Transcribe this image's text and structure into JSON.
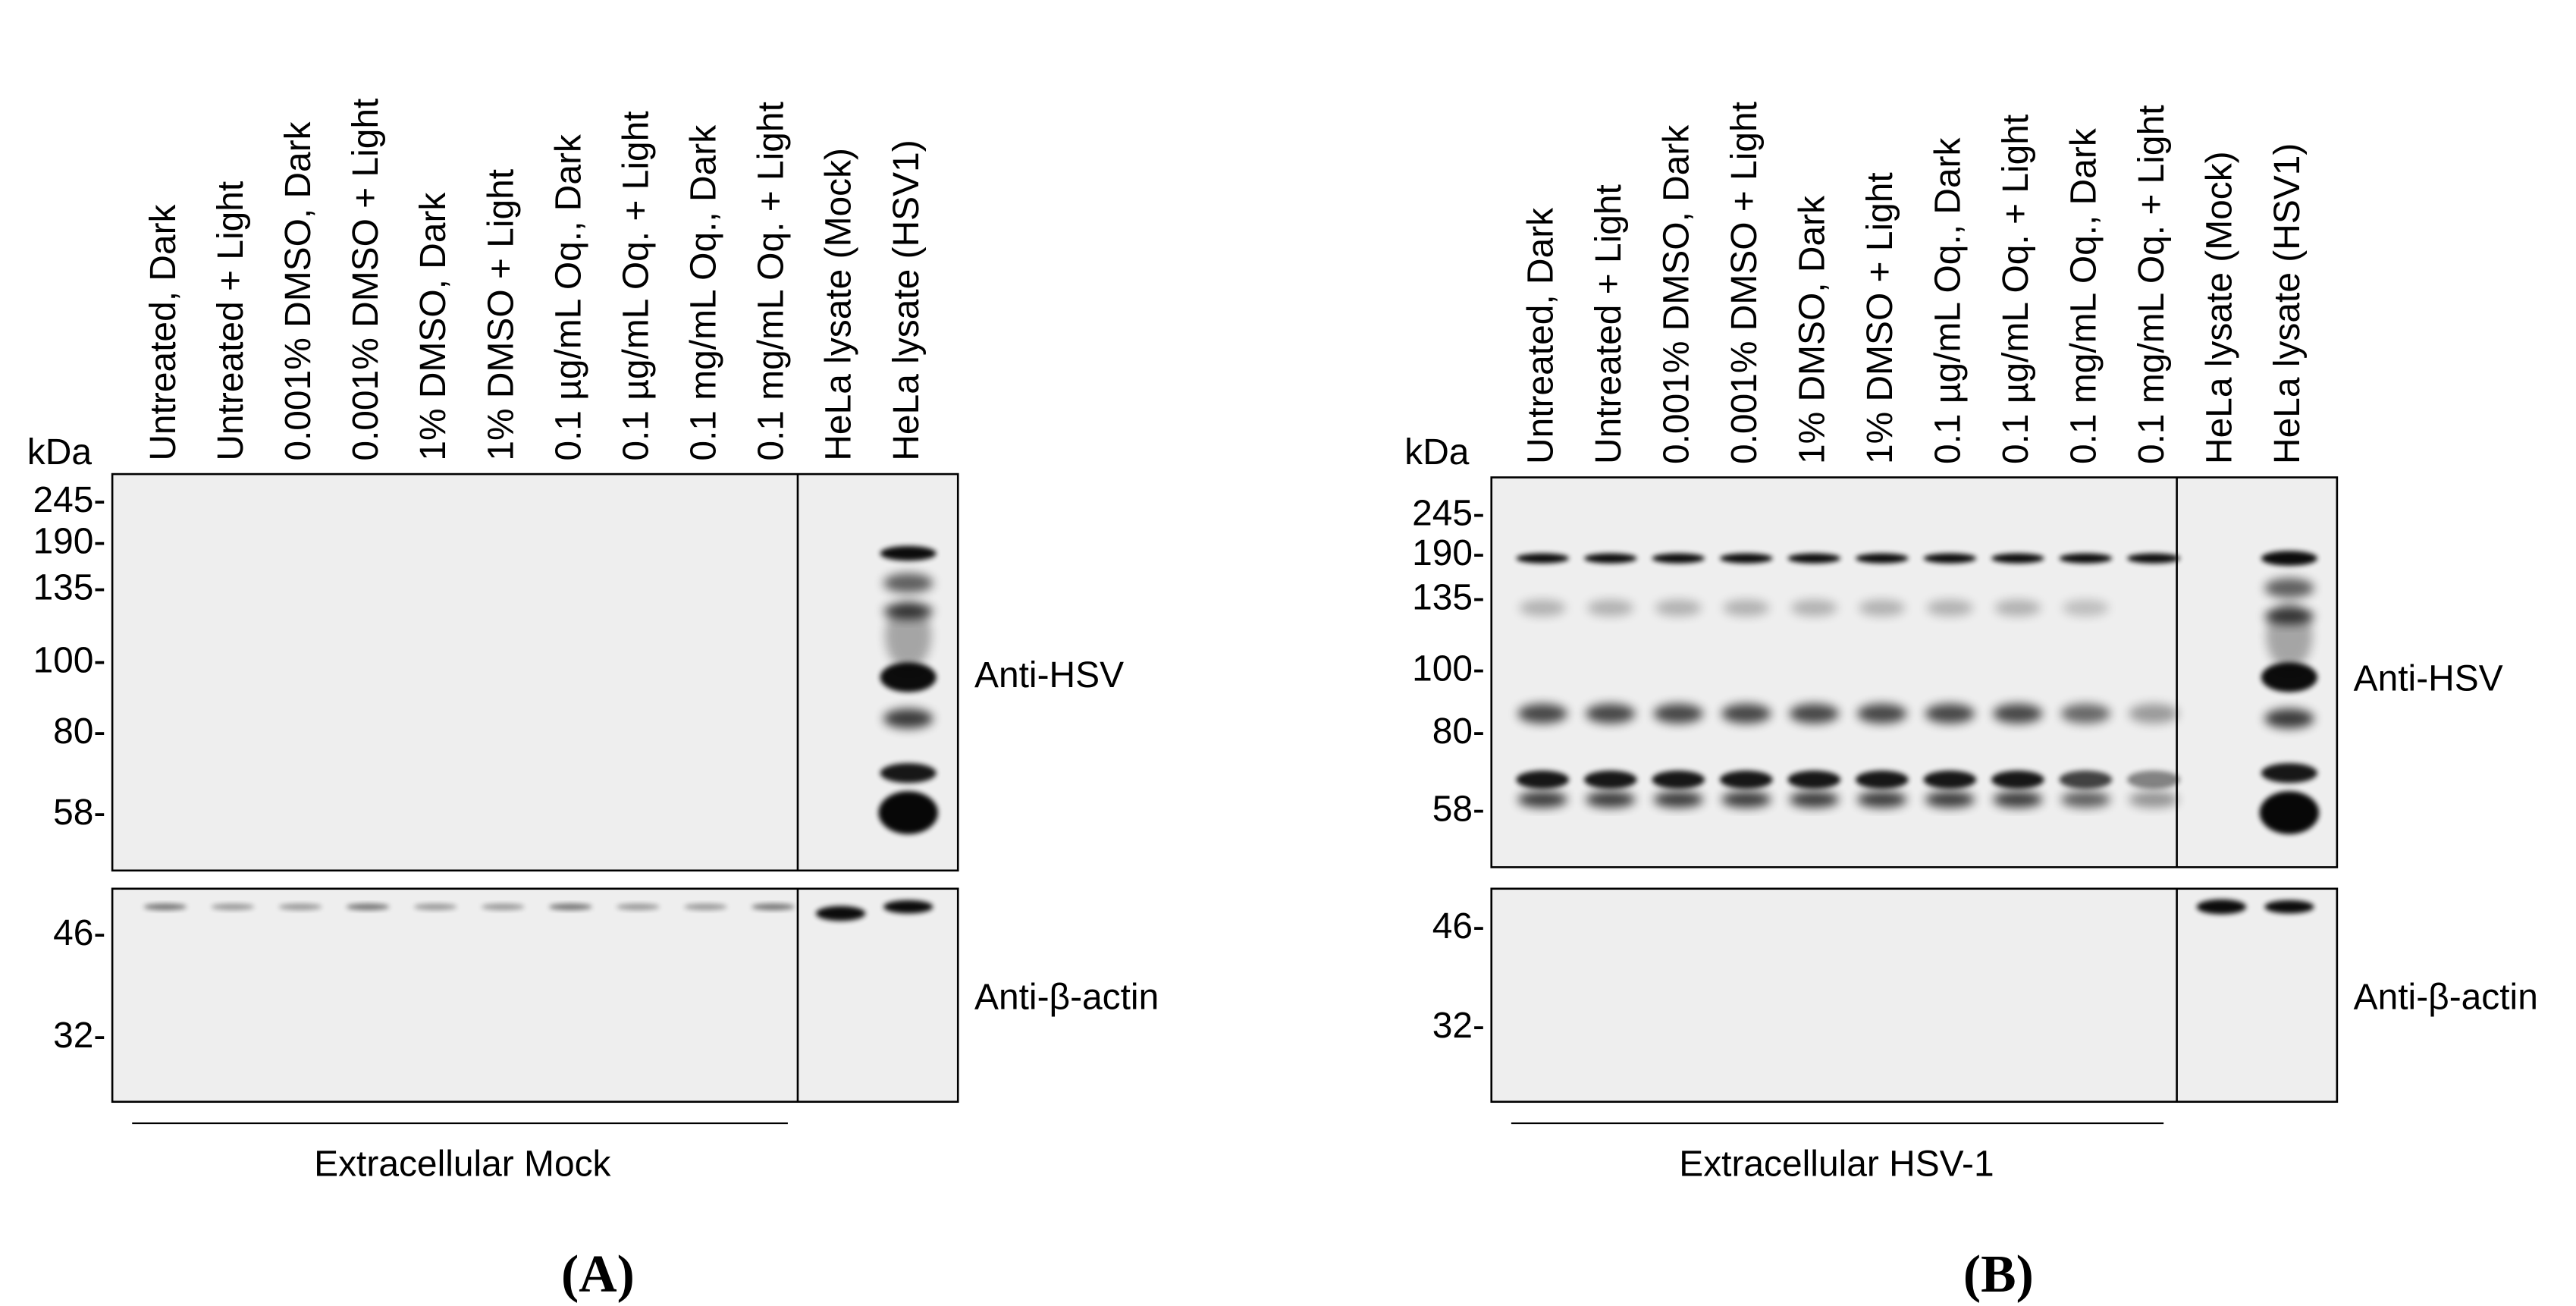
{
  "panels": [
    {
      "letter": "(A)",
      "kda_label": "kDa",
      "lanes": [
        "Untreated, Dark",
        "Untreated + Light",
        "0.001% DMSO, Dark",
        "0.001% DMSO + Light",
        "1% DMSO, Dark",
        "1% DMSO + Light",
        "0.1 µg/mL Oq., Dark",
        "0.1 µg/mL Oq. + Light",
        "0.1 mg/mL Oq., Dark",
        "0.1 mg/mL Oq. + Light",
        "HeLa lysate (Mock)",
        "HeLa lysate (HSV1)"
      ],
      "markers": [
        "245-",
        "190-",
        "135-",
        "100-",
        "80-",
        "58-",
        "46-",
        "32-"
      ],
      "blot_labels": [
        "Anti-HSV",
        "Anti-β-actin"
      ],
      "group_label": "Extracellular Mock"
    },
    {
      "letter": "(B)",
      "kda_label": "kDa",
      "lanes": [
        "Untreated, Dark",
        "Untreated + Light",
        "0.001% DMSO, Dark",
        "0.001% DMSO + Light",
        "1% DMSO, Dark",
        "1% DMSO + Light",
        "0.1 µg/mL Oq., Dark",
        "0.1 µg/mL Oq. + Light",
        "0.1 mg/mL Oq., Dark",
        "0.1 mg/mL Oq. + Light",
        "HeLa lysate (Mock)",
        "HeLa lysate (HSV1)"
      ],
      "markers": [
        "245-",
        "190-",
        "135-",
        "100-",
        "80-",
        "58-",
        "46-",
        "32-"
      ],
      "blot_labels": [
        "Anti-HSV",
        "Anti-β-actin"
      ],
      "group_label": "Extracellular HSV-1"
    }
  ]
}
